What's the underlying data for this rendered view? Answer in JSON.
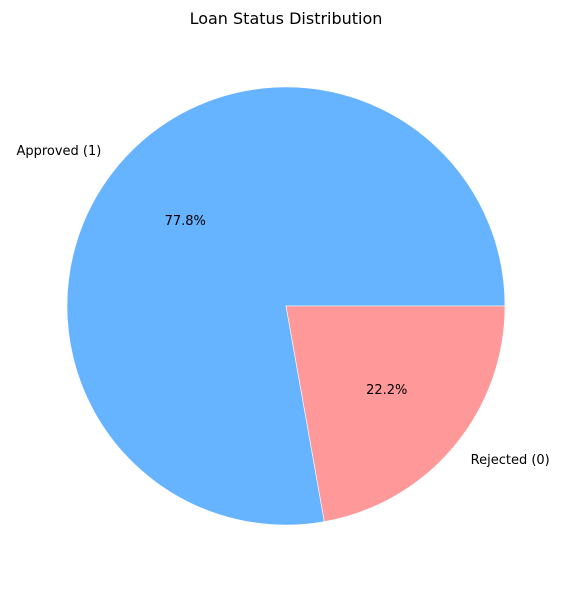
{
  "chart_data": {
    "type": "pie",
    "title": "Loan Status Distribution",
    "categories": [
      "Approved (1)",
      "Rejected (0)"
    ],
    "values": [
      77.8,
      22.2
    ],
    "percent_labels": [
      "77.8%",
      "22.2%"
    ],
    "colors": [
      "#66b3ff",
      "#ff9999"
    ],
    "start_angle": "0deg (3 o'clock)",
    "direction": "counterclockwise"
  }
}
